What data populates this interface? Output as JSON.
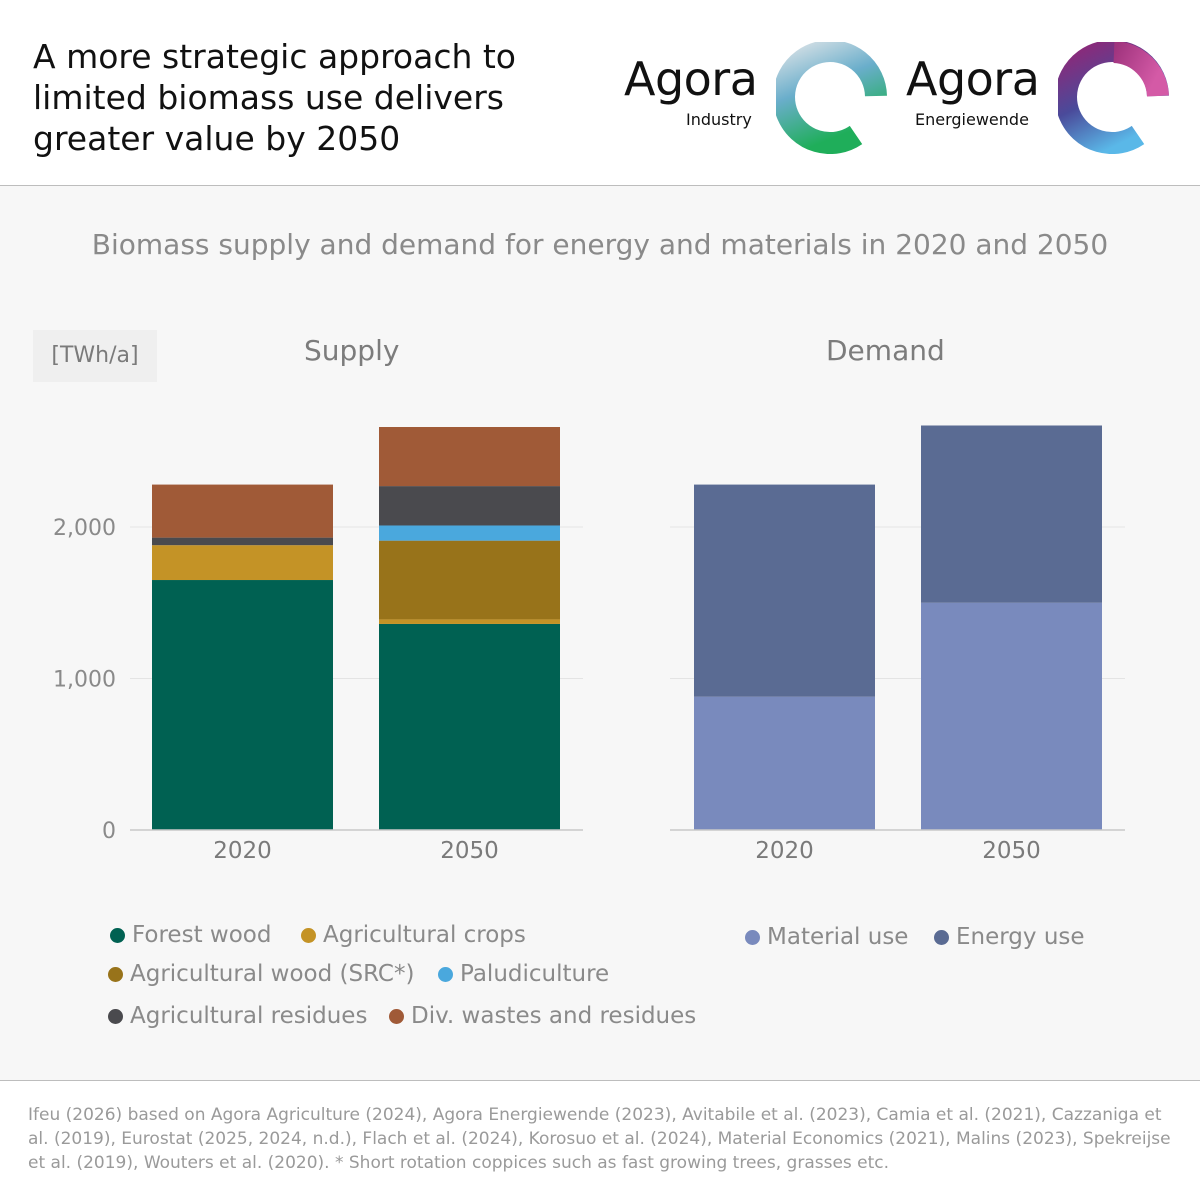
{
  "header": {
    "title": "A more strategic approach to limited biomass use delivers greater value by 2050",
    "logo_industry": {
      "word": "Agora",
      "sub": "Industry"
    },
    "logo_energiewende": {
      "word": "Agora",
      "sub": "Energiewende"
    }
  },
  "subtitle": "Biomass supply and demand for energy and materials in 2020 and 2050",
  "unit": "[TWh/a]",
  "colors": {
    "forest_wood": "#006152",
    "agricultural_crops": "#c49326",
    "agricultural_wood": "#98731a",
    "paludiculture": "#4aa8dd",
    "agricultural_residues": "#4a4a4e",
    "div_wastes": "#a05a37",
    "material_use": "#798abd",
    "energy_use": "#5a6b93"
  },
  "chart_data": [
    {
      "type": "bar",
      "stacked": true,
      "title": "Supply",
      "categories": [
        "2020",
        "2050"
      ],
      "ylim": [
        0,
        2700
      ],
      "yticks": [
        0,
        1000,
        2000
      ],
      "ytick_labels": [
        "0",
        "1,000",
        "2,000"
      ],
      "grid": true,
      "series": [
        {
          "name": "Forest wood",
          "values": [
            1650,
            1360
          ]
        },
        {
          "name": "Agricultural crops",
          "values": [
            230,
            30
          ]
        },
        {
          "name": "Agricultural wood (SRC*)",
          "values": [
            0,
            520
          ]
        },
        {
          "name": "Paludiculture",
          "values": [
            0,
            100
          ]
        },
        {
          "name": "Agricultural residues",
          "values": [
            50,
            260
          ]
        },
        {
          "name": "Div. wastes and residues",
          "values": [
            350,
            390
          ]
        }
      ]
    },
    {
      "type": "bar",
      "stacked": true,
      "title": "Demand",
      "categories": [
        "2020",
        "2050"
      ],
      "ylim": [
        0,
        2700
      ],
      "yticks": [
        0,
        1000,
        2000
      ],
      "grid": true,
      "series": [
        {
          "name": "Material use",
          "values": [
            880,
            1500
          ]
        },
        {
          "name": "Energy use",
          "values": [
            1400,
            1170
          ]
        }
      ]
    }
  ],
  "source": "Ifeu (2026) based on Agora Agriculture (2024), Agora Energiewende (2023), Avitabile et al. (2023), Camia et al. (2021), Cazzaniga et al. (2019), Eurostat (2025, 2024, n.d.), Flach et al. (2024), Korosuo et al. (2024), Material Economics (2021), Malins (2023), Spekreijse et al. (2019), Wouters et al. (2020). * Short rotation coppices such as fast growing trees, grasses etc."
}
